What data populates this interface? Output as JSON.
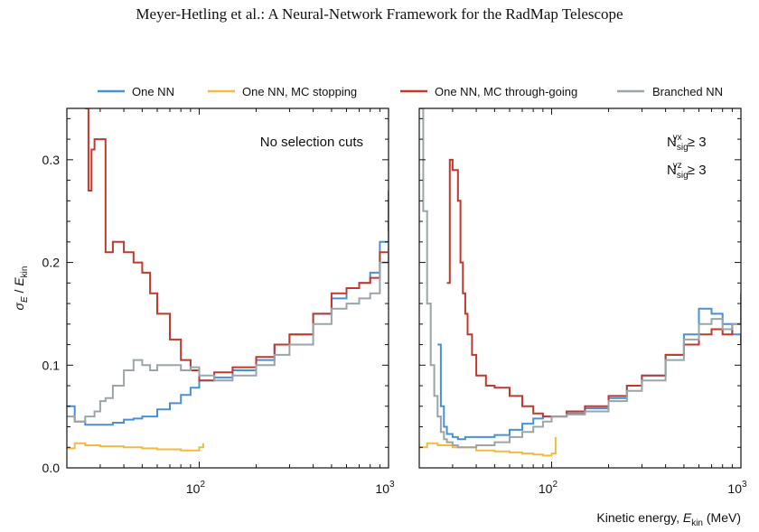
{
  "header": {
    "title": "Meyer-Hetling et al.: A Neural-Network Framework for the RadMap Telescope"
  },
  "legend": [
    {
      "name": "One NN",
      "color": "#4a90d9"
    },
    {
      "name": "One NN, MC stopping",
      "color": "#f5b942"
    },
    {
      "name": "One NN, MC through-going",
      "color": "#c0392b"
    },
    {
      "name": "Branched NN",
      "color": "#9aa5a8"
    }
  ],
  "axes": {
    "xlabel_main": "Kinetic energy, ",
    "xlabel_sym": "E",
    "xlabel_sub": "kin",
    "xlabel_unit": " (MeV)",
    "ylabel_sym_num": "σ",
    "ylabel_sub_num": "E",
    "ylabel_slash": " / ",
    "ylabel_sym_den": "E",
    "ylabel_sub_den": "kin"
  },
  "chart_data": [
    {
      "type": "line",
      "panel": "left",
      "annotation": "No selection cuts",
      "xscale": "log",
      "xlim": [
        20,
        1000
      ],
      "ylim": [
        0,
        0.35
      ],
      "x_ticks": [
        {
          "value": 100,
          "base": "10",
          "exp": "2"
        },
        {
          "value": 1000,
          "base": "10",
          "exp": "3"
        }
      ],
      "y_ticks": [
        {
          "value": 0.0,
          "label": "0.0"
        },
        {
          "value": 0.1,
          "label": "0.1"
        },
        {
          "value": 0.2,
          "label": "0.2"
        },
        {
          "value": 0.3,
          "label": "0.3"
        }
      ],
      "series": [
        {
          "name": "One NN",
          "color": "#4a90d9",
          "x": [
            20,
            22,
            25,
            30,
            35,
            40,
            45,
            50,
            60,
            70,
            80,
            90,
            100,
            120,
            150,
            200,
            250,
            300,
            400,
            500,
            600,
            700,
            800,
            900,
            1000
          ],
          "y": [
            0.06,
            0.045,
            0.042,
            0.042,
            0.044,
            0.047,
            0.048,
            0.05,
            0.057,
            0.063,
            0.071,
            0.078,
            0.085,
            0.088,
            0.095,
            0.105,
            0.12,
            0.13,
            0.15,
            0.165,
            0.175,
            0.18,
            0.19,
            0.22,
            0.27
          ]
        },
        {
          "name": "One NN, MC stopping",
          "color": "#f5b942",
          "x": [
            20,
            22,
            25,
            30,
            40,
            50,
            60,
            70,
            80,
            90,
            100,
            105
          ],
          "y": [
            0.019,
            0.024,
            0.022,
            0.021,
            0.02,
            0.019,
            0.018,
            0.018,
            0.017,
            0.017,
            0.02,
            0.024
          ]
        },
        {
          "name": "One NN, MC through-going",
          "color": "#c0392b",
          "x": [
            25,
            26,
            27,
            28,
            30,
            32,
            35,
            40,
            45,
            50,
            55,
            60,
            70,
            80,
            90,
            100,
            120,
            150,
            200,
            250,
            300,
            400,
            500,
            600,
            700,
            800,
            900,
            1000
          ],
          "y": [
            0.35,
            0.27,
            0.31,
            0.32,
            0.32,
            0.21,
            0.22,
            0.21,
            0.2,
            0.19,
            0.17,
            0.15,
            0.125,
            0.105,
            0.095,
            0.085,
            0.093,
            0.098,
            0.108,
            0.12,
            0.13,
            0.15,
            0.17,
            0.175,
            0.18,
            0.185,
            0.21,
            0.24
          ]
        },
        {
          "name": "Branched NN",
          "color": "#9aa5a8",
          "x": [
            20,
            22,
            25,
            28,
            30,
            32,
            35,
            40,
            45,
            50,
            55,
            60,
            70,
            80,
            90,
            100,
            120,
            150,
            200,
            250,
            300,
            400,
            500,
            600,
            700,
            800,
            900,
            1000
          ],
          "y": [
            0.05,
            0.045,
            0.05,
            0.055,
            0.065,
            0.068,
            0.08,
            0.095,
            0.105,
            0.1,
            0.095,
            0.1,
            0.1,
            0.095,
            0.098,
            0.09,
            0.085,
            0.09,
            0.1,
            0.11,
            0.12,
            0.14,
            0.155,
            0.16,
            0.165,
            0.17,
            0.2,
            0.23
          ]
        }
      ]
    },
    {
      "type": "line",
      "panel": "right",
      "annotation": [
        {
          "base": "N",
          "sub": "sig",
          "sup": "yx",
          "rel": " ≥ 3"
        },
        {
          "base": "N",
          "sub": "sig",
          "sup": "yz",
          "rel": " ≥ 3"
        }
      ],
      "xscale": "log",
      "xlim": [
        20,
        1000
      ],
      "ylim": [
        0,
        0.35
      ],
      "x_ticks": [
        {
          "value": 100,
          "base": "10",
          "exp": "2"
        },
        {
          "value": 1000,
          "base": "10",
          "exp": "3"
        }
      ],
      "series": [
        {
          "name": "One NN",
          "color": "#4a90d9",
          "x": [
            25,
            26,
            27,
            28,
            30,
            32,
            35,
            40,
            50,
            60,
            70,
            80,
            90,
            100,
            120,
            150,
            200,
            250,
            300,
            400,
            500,
            600,
            700,
            800,
            900,
            1000
          ],
          "y": [
            0.12,
            0.06,
            0.04,
            0.033,
            0.03,
            0.028,
            0.03,
            0.03,
            0.032,
            0.037,
            0.043,
            0.048,
            0.05,
            0.05,
            0.053,
            0.058,
            0.068,
            0.08,
            0.09,
            0.11,
            0.13,
            0.155,
            0.15,
            0.14,
            0.13,
            0.12
          ]
        },
        {
          "name": "One NN, MC stopping",
          "color": "#f5b942",
          "x": [
            20,
            22,
            25,
            30,
            40,
            50,
            60,
            70,
            80,
            90,
            100,
            105
          ],
          "y": [
            0.02,
            0.024,
            0.022,
            0.02,
            0.017,
            0.016,
            0.015,
            0.014,
            0.013,
            0.012,
            0.014,
            0.03
          ]
        },
        {
          "name": "One NN, MC through-going",
          "color": "#c0392b",
          "x": [
            28,
            29,
            30,
            32,
            33,
            34,
            35,
            36,
            38,
            40,
            45,
            50,
            60,
            70,
            80,
            90,
            100,
            120,
            150,
            200,
            250,
            300,
            400,
            500,
            600,
            700,
            800,
            900,
            1000
          ],
          "y": [
            0.18,
            0.3,
            0.29,
            0.26,
            0.2,
            0.17,
            0.15,
            0.13,
            0.11,
            0.09,
            0.08,
            0.078,
            0.07,
            0.06,
            0.053,
            0.05,
            0.05,
            0.055,
            0.06,
            0.07,
            0.08,
            0.09,
            0.11,
            0.12,
            0.13,
            0.135,
            0.13,
            0.14,
            0.155
          ]
        },
        {
          "name": "Branched NN",
          "color": "#9aa5a8",
          "x": [
            20,
            21,
            22,
            23,
            24,
            25,
            26,
            27,
            28,
            30,
            32,
            35,
            40,
            50,
            60,
            70,
            80,
            90,
            100,
            120,
            150,
            200,
            250,
            300,
            400,
            500,
            600,
            700,
            800,
            900,
            1000
          ],
          "y": [
            0.35,
            0.25,
            0.16,
            0.1,
            0.07,
            0.05,
            0.035,
            0.028,
            0.025,
            0.022,
            0.02,
            0.02,
            0.022,
            0.025,
            0.03,
            0.035,
            0.04,
            0.045,
            0.05,
            0.052,
            0.055,
            0.065,
            0.075,
            0.085,
            0.105,
            0.125,
            0.14,
            0.145,
            0.135,
            0.14,
            0.17
          ]
        }
      ]
    }
  ]
}
